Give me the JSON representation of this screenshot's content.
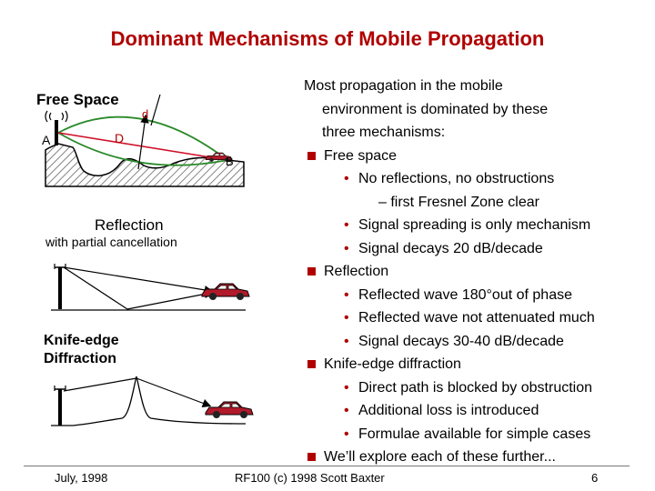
{
  "title": "Dominant Mechanisms of Mobile Propagation",
  "left": {
    "free_space": {
      "label": "Free Space",
      "d": "d",
      "D": "D",
      "A": "A",
      "B": "B"
    },
    "reflection": {
      "label": "Reflection",
      "sublabel": "with partial cancellation"
    },
    "knife_edge": {
      "label1": "Knife-edge",
      "label2": "Diffraction"
    }
  },
  "right": {
    "intro": [
      "Most propagation in the mobile",
      "environment is dominated by these",
      "three mechanisms:"
    ],
    "items": [
      {
        "level": 1,
        "text": "Free space"
      },
      {
        "level": 2,
        "text": "No reflections, no obstructions"
      },
      {
        "level": 3,
        "text": "– first Fresnel Zone clear"
      },
      {
        "level": 2,
        "text": "Signal spreading is only  mechanism"
      },
      {
        "level": 2,
        "text": "Signal decays 20 dB/decade"
      },
      {
        "level": 1,
        "text": "Reflection"
      },
      {
        "level": 2,
        "text": "Reflected wave 180°out of phase"
      },
      {
        "level": 2,
        "text": "Reflected wave not attenuated much"
      },
      {
        "level": 2,
        "text": "Signal decays 30-40 dB/decade"
      },
      {
        "level": 1,
        "text": "Knife-edge diffraction"
      },
      {
        "level": 2,
        "text": "Direct path is blocked by obstruction"
      },
      {
        "level": 2,
        "text": "Additional loss is introduced"
      },
      {
        "level": 2,
        "text": "Formulae available for simple cases"
      },
      {
        "level": 1,
        "text": "We’ll explore each of these further..."
      }
    ]
  },
  "footer": {
    "left": "July, 1998",
    "center": "RF100 (c) 1998 Scott Baxter",
    "right": "6"
  },
  "colors": {
    "title": "#b00000",
    "bullet": "#b00000",
    "zone": "#2a8a2a",
    "direct": "#d0102a",
    "car": "#b11a2a"
  }
}
